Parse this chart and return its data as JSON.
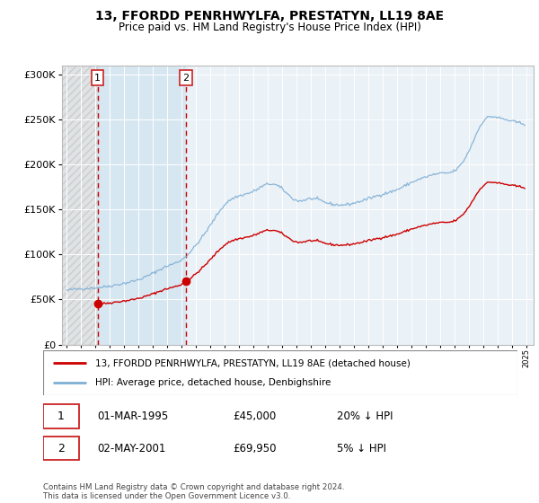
{
  "title": "13, FFORDD PENRHWYLFA, PRESTATYN, LL19 8AE",
  "subtitle": "Price paid vs. HM Land Registry's House Price Index (HPI)",
  "legend_entry1": "13, FFORDD PENRHWYLFA, PRESTATYN, LL19 8AE (detached house)",
  "legend_entry2": "HPI: Average price, detached house, Denbighshire",
  "transaction1_date": "01-MAR-1995",
  "transaction1_price": "£45,000",
  "transaction1_hpi": "20% ↓ HPI",
  "transaction2_date": "02-MAY-2001",
  "transaction2_price": "£69,950",
  "transaction2_hpi": "5% ↓ HPI",
  "footer": "Contains HM Land Registry data © Crown copyright and database right 2024.\nThis data is licensed under the Open Government Licence v3.0.",
  "red_line_color": "#cc0000",
  "blue_line_color": "#7fafd4",
  "marker1_year": 1995.17,
  "marker1_y": 45000,
  "marker2_year": 2001.33,
  "marker2_y": 69950,
  "ylim": [
    0,
    310000
  ],
  "xlim_start": 1992.7,
  "xlim_end": 2025.5
}
